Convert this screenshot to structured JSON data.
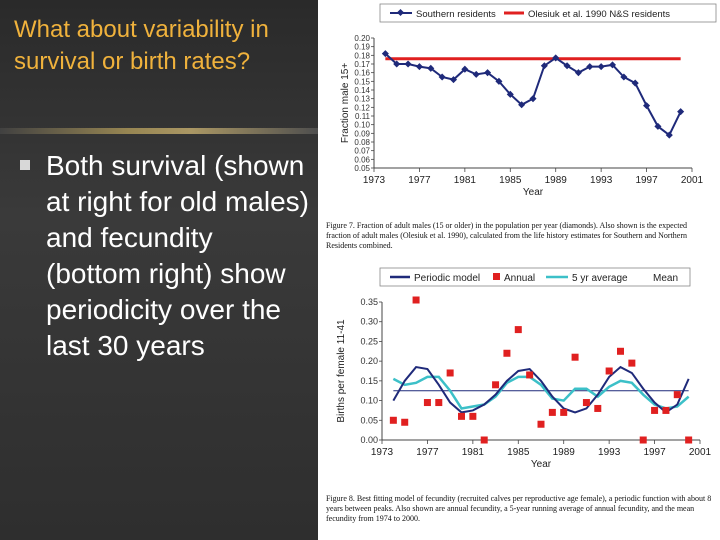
{
  "slide": {
    "title": "What about variability in survival or birth rates?",
    "bullet": "Both survival (shown at right for old males) and fecundity (bottom right) show periodicity over the last 30 years"
  },
  "colors": {
    "accent_title": "#f0b23c",
    "series_blue": "#1f2a7a",
    "series_red": "#e02020",
    "series_cyan": "#3cc0c8"
  },
  "chart_data": [
    {
      "type": "line",
      "legend": [
        {
          "name": "Southern residents",
          "color": "#1f2a7a"
        },
        {
          "name": "Olesiuk et al. 1990 N&S residents",
          "color": "#e02020"
        }
      ],
      "xlabel": "Year",
      "ylabel": "Fraction male 15+",
      "xlim": [
        1973,
        2001
      ],
      "ylim": [
        0.05,
        0.2
      ],
      "x_ticks": [
        "1973",
        "1977",
        "1981",
        "1985",
        "1989",
        "1993",
        "1997",
        "2001"
      ],
      "y_ticks": [
        "0.05",
        "0.06",
        "0.07",
        "0.08",
        "0.09",
        "0.10",
        "0.11",
        "0.12",
        "0.13",
        "0.14",
        "0.15",
        "0.16",
        "0.17",
        "0.18",
        "0.19",
        "0.20"
      ],
      "series": [
        {
          "name": "Southern residents",
          "x": [
            1974,
            1975,
            1976,
            1977,
            1978,
            1979,
            1980,
            1981,
            1982,
            1983,
            1984,
            1985,
            1986,
            1987,
            1988,
            1989,
            1990,
            1991,
            1992,
            1993,
            1994,
            1995,
            1996,
            1997,
            1998,
            1999,
            2000
          ],
          "y": [
            0.182,
            0.17,
            0.17,
            0.167,
            0.165,
            0.155,
            0.152,
            0.164,
            0.158,
            0.16,
            0.15,
            0.135,
            0.123,
            0.13,
            0.168,
            0.177,
            0.168,
            0.16,
            0.167,
            0.167,
            0.169,
            0.155,
            0.148,
            0.122,
            0.098,
            0.088,
            0.115
          ]
        },
        {
          "name": "Olesiuk et al. 1990 N&S residents",
          "x": [
            1974,
            2000
          ],
          "y": [
            0.176,
            0.176
          ]
        }
      ],
      "caption": "Figure 7. Fraction of adult males (15 or older) in the population per year (diamonds). Also shown is the expected fraction of adult males (Olesiuk et al. 1990), calculated from the life history estimates for Southern and Northern Residents combined."
    },
    {
      "type": "line",
      "legend": [
        {
          "name": "Periodic model",
          "color": "#1f2a7a"
        },
        {
          "name": "Annual",
          "color": "#e02020"
        },
        {
          "name": "5 yr average",
          "color": "#3cc0c8"
        },
        {
          "name": "Mean",
          "color": "#1f2a7a"
        }
      ],
      "xlabel": "Year",
      "ylabel": "Births per female 11-41",
      "xlim": [
        1973,
        2001
      ],
      "ylim": [
        0.0,
        0.35
      ],
      "x_ticks": [
        "1973",
        "1977",
        "1981",
        "1985",
        "1989",
        "1993",
        "1997",
        "2001"
      ],
      "y_ticks": [
        "0.00",
        "0.05",
        "0.10",
        "0.15",
        "0.20",
        "0.25",
        "0.30",
        "0.35"
      ],
      "mean": 0.125,
      "series": [
        {
          "name": "Annual",
          "x": [
            1974,
            1975,
            1976,
            1977,
            1978,
            1979,
            1980,
            1981,
            1982,
            1983,
            1984,
            1985,
            1986,
            1987,
            1988,
            1989,
            1990,
            1991,
            1992,
            1993,
            1994,
            1995,
            1996,
            1997,
            1998,
            1999,
            2000
          ],
          "y": [
            0.05,
            0.045,
            0.37,
            0.095,
            0.095,
            0.17,
            0.06,
            0.06,
            0.0,
            0.14,
            0.22,
            0.28,
            0.165,
            0.04,
            0.07,
            0.07,
            0.21,
            0.095,
            0.08,
            0.175,
            0.225,
            0.195,
            0.0,
            0.075,
            0.075,
            0.115,
            0.0
          ]
        },
        {
          "name": "Periodic model",
          "x": [
            1974,
            1975,
            1976,
            1977,
            1978,
            1979,
            1980,
            1981,
            1982,
            1983,
            1984,
            1985,
            1986,
            1987,
            1988,
            1989,
            1990,
            1991,
            1992,
            1993,
            1994,
            1995,
            1996,
            1997,
            1998,
            1999,
            2000
          ],
          "y": [
            0.1,
            0.15,
            0.185,
            0.18,
            0.14,
            0.095,
            0.07,
            0.075,
            0.09,
            0.115,
            0.15,
            0.175,
            0.18,
            0.15,
            0.11,
            0.08,
            0.07,
            0.08,
            0.115,
            0.16,
            0.185,
            0.17,
            0.13,
            0.095,
            0.07,
            0.09,
            0.155
          ]
        },
        {
          "name": "5 yr average",
          "x": [
            1974,
            1975,
            1976,
            1977,
            1978,
            1979,
            1980,
            1981,
            1982,
            1983,
            1984,
            1985,
            1986,
            1987,
            1988,
            1989,
            1990,
            1991,
            1992,
            1993,
            1994,
            1995,
            1996,
            1997,
            1998,
            1999,
            2000
          ],
          "y": [
            0.155,
            0.14,
            0.145,
            0.16,
            0.16,
            0.125,
            0.08,
            0.085,
            0.09,
            0.11,
            0.145,
            0.16,
            0.16,
            0.14,
            0.105,
            0.1,
            0.13,
            0.13,
            0.11,
            0.135,
            0.15,
            0.145,
            0.115,
            0.09,
            0.08,
            0.085,
            0.11
          ]
        }
      ],
      "caption": "Figure 8. Best fitting model of fecundity (recruited calves per reproductive age female), a periodic function with about 8 years between peaks. Also shown are annual fecundity, a 5-year running average of annual fecundity, and the mean fecundity from 1974 to 2000."
    }
  ]
}
